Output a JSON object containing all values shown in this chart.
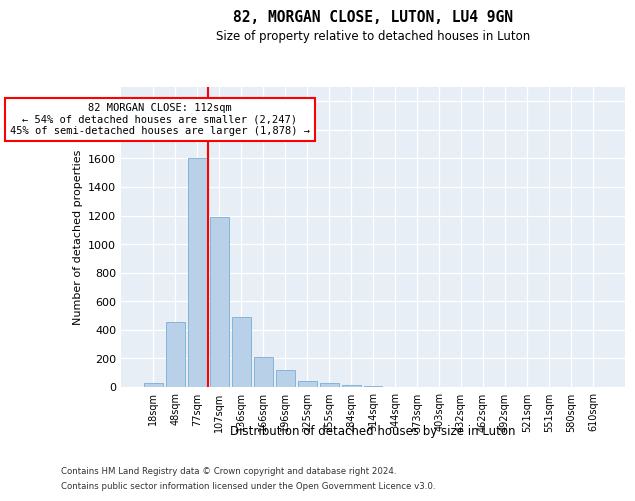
{
  "title": "82, MORGAN CLOSE, LUTON, LU4 9GN",
  "subtitle": "Size of property relative to detached houses in Luton",
  "xlabel": "Distribution of detached houses by size in Luton",
  "ylabel": "Number of detached properties",
  "footer_line1": "Contains HM Land Registry data © Crown copyright and database right 2024.",
  "footer_line2": "Contains public sector information licensed under the Open Government Licence v3.0.",
  "annotation_line1": "82 MORGAN CLOSE: 112sqm",
  "annotation_line2": "← 54% of detached houses are smaller (2,247)",
  "annotation_line3": "45% of semi-detached houses are larger (1,878) →",
  "bar_color": "#b8d0e8",
  "bar_edge_color": "#7aadd4",
  "vline_color": "red",
  "bg_color": "#e8eef5",
  "categories": [
    "18sqm",
    "48sqm",
    "77sqm",
    "107sqm",
    "136sqm",
    "166sqm",
    "196sqm",
    "225sqm",
    "255sqm",
    "284sqm",
    "314sqm",
    "344sqm",
    "373sqm",
    "403sqm",
    "432sqm",
    "462sqm",
    "492sqm",
    "521sqm",
    "551sqm",
    "580sqm",
    "610sqm"
  ],
  "values": [
    30,
    455,
    1600,
    1190,
    490,
    210,
    120,
    40,
    25,
    15,
    10,
    0,
    0,
    0,
    0,
    0,
    0,
    0,
    0,
    0,
    0
  ],
  "ylim": [
    0,
    2100
  ],
  "yticks": [
    0,
    200,
    400,
    600,
    800,
    1000,
    1200,
    1400,
    1600,
    1800,
    2000
  ],
  "vline_position": 2.5,
  "grid_color": "#d0d8e8"
}
